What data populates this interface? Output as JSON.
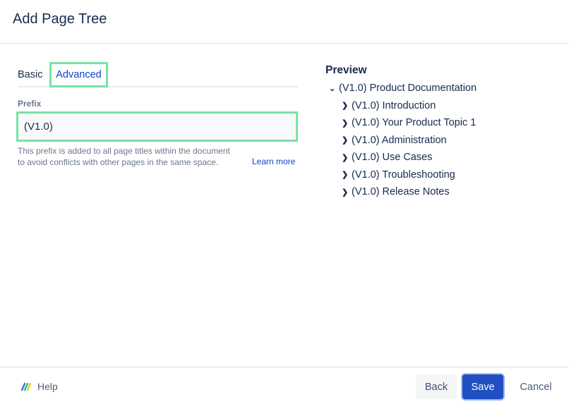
{
  "dialog": {
    "title": "Add Page Tree"
  },
  "tabs": [
    {
      "label": "Basic",
      "active": false
    },
    {
      "label": "Advanced",
      "active": true
    }
  ],
  "prefix": {
    "label": "Prefix",
    "value": "(V1.0)",
    "help_line1": "This prefix is added to all page titles within the document",
    "help_line2": "to avoid conflicts with other pages in the same space.",
    "learn_more": "Learn more"
  },
  "preview": {
    "title": "Preview",
    "root": "(V1.0) Product Documentation",
    "children": [
      "(V1.0) Introduction",
      "(V1.0) Your Product Topic 1",
      "(V1.0) Administration",
      "(V1.0) Use Cases",
      "(V1.0) Troubleshooting",
      "(V1.0) Release Notes"
    ]
  },
  "footer": {
    "help": "Help",
    "back": "Back",
    "save": "Save",
    "cancel": "Cancel"
  },
  "colors": {
    "accent": "#1f4fc1",
    "highlight": "#79e2a8",
    "link": "#0c45c6"
  }
}
